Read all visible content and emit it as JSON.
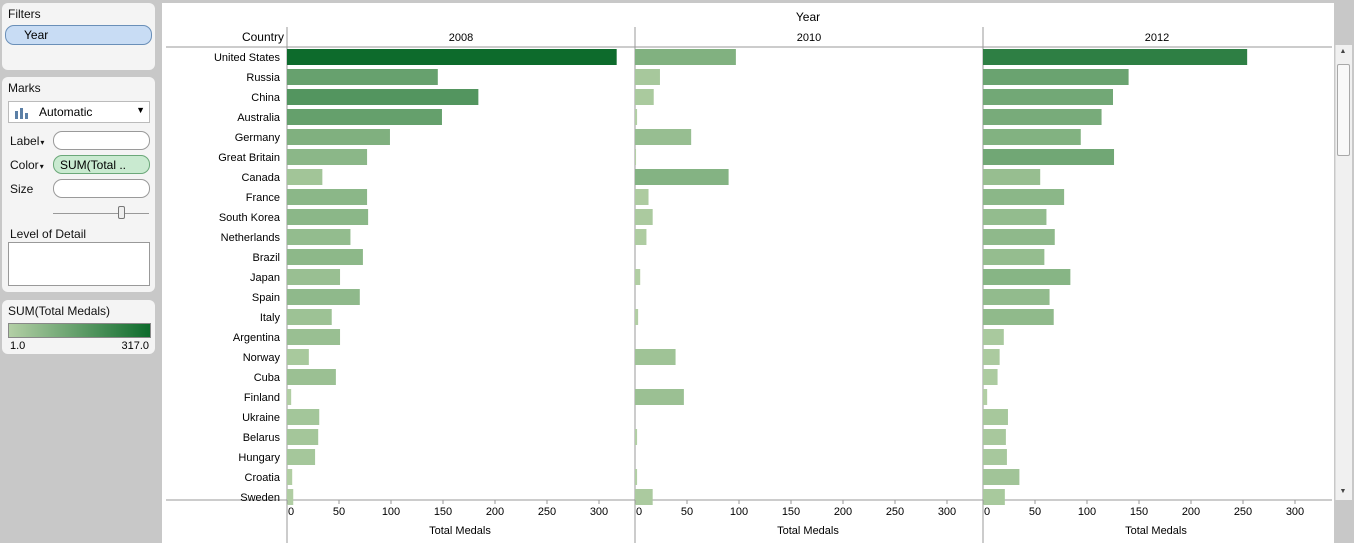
{
  "filters": {
    "title": "Filters",
    "year_pill": "Year"
  },
  "marks": {
    "title": "Marks",
    "mark_type": "Automatic",
    "label_text": "Label",
    "color_text": "Color",
    "color_pill": "SUM(Total ..",
    "size_text": "Size",
    "level_of_detail": "Level of Detail"
  },
  "legend": {
    "title": "SUM(Total Medals)",
    "min": "1.0",
    "max": "317.0",
    "color_low": "#b3cfa5",
    "color_high": "#0d6b2c"
  },
  "header": {
    "column_title": "Year",
    "row_title": "Country"
  },
  "chart_data": {
    "type": "bar",
    "orientation": "horizontal",
    "xlabel": "Total Medals",
    "xlim": [
      0,
      320
    ],
    "xticks": [
      0,
      50,
      100,
      150,
      200,
      250,
      300
    ],
    "color_range": [
      1,
      317
    ],
    "panels": [
      "2008",
      "2010",
      "2012"
    ],
    "categories": [
      "United States",
      "Russia",
      "China",
      "Australia",
      "Germany",
      "Great Britain",
      "Canada",
      "France",
      "South Korea",
      "Netherlands",
      "Brazil",
      "Japan",
      "Spain",
      "Italy",
      "Argentina",
      "Norway",
      "Cuba",
      "Finland",
      "Ukraine",
      "Belarus",
      "Hungary",
      "Croatia",
      "Sweden"
    ],
    "series": [
      {
        "name": "2008",
        "values": [
          317,
          145,
          184,
          149,
          99,
          77,
          34,
          77,
          78,
          61,
          73,
          51,
          70,
          43,
          51,
          21,
          47,
          4,
          31,
          30,
          27,
          5,
          6
        ]
      },
      {
        "name": "2010",
        "values": [
          97,
          24,
          18,
          2,
          54,
          1,
          90,
          13,
          17,
          11,
          0,
          5,
          0,
          3,
          0,
          39,
          0,
          47,
          0,
          2,
          0,
          2,
          17
        ]
      },
      {
        "name": "2012",
        "values": [
          254,
          140,
          125,
          114,
          94,
          126,
          55,
          78,
          61,
          69,
          59,
          84,
          64,
          68,
          20,
          16,
          14,
          4,
          24,
          22,
          23,
          35,
          21
        ]
      }
    ]
  }
}
